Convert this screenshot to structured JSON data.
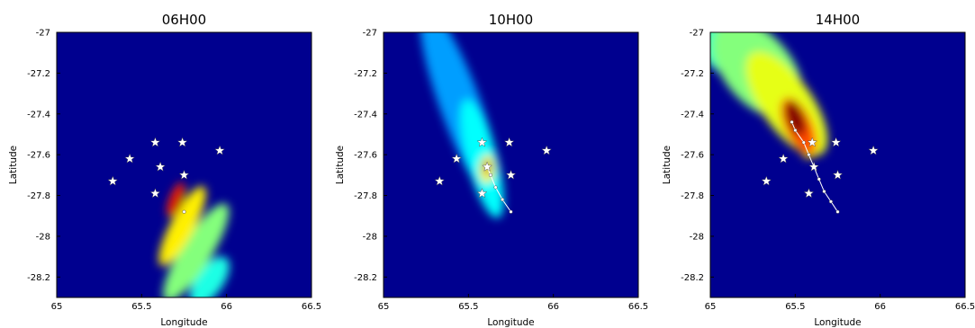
{
  "chart_data": [
    {
      "type": "heatmap",
      "title": "06H00",
      "xlabel": "Longitude",
      "ylabel": "Latitude",
      "xlim": [
        65,
        66.5
      ],
      "ylim": [
        -28.3,
        -27
      ],
      "xticks": [
        65,
        65.5,
        66,
        66.5
      ],
      "xtick_labels": [
        "65",
        "65.5",
        "66",
        "66.5"
      ],
      "yticks": [
        -27,
        -27.2,
        -27.4,
        -27.6,
        -27.8,
        -28,
        -28.2
      ],
      "ytick_labels": [
        "-27",
        "-27.2",
        "-27.4",
        "-27.6",
        "-27.8",
        "-28",
        "-28.2"
      ],
      "colormap": "jet",
      "background_color": "#00008f",
      "stars": [
        [
          65.33,
          -27.73
        ],
        [
          65.43,
          -27.62
        ],
        [
          65.58,
          -27.54
        ],
        [
          65.74,
          -27.54
        ],
        [
          65.96,
          -27.58
        ],
        [
          65.61,
          -27.66
        ],
        [
          65.75,
          -27.7
        ],
        [
          65.58,
          -27.79
        ]
      ],
      "track": [
        [
          65.75,
          -27.88
        ]
      ],
      "plume": [
        {
          "x": 65.72,
          "y": -27.84,
          "rx": 0.02,
          "ry": 0.06,
          "angle": 22,
          "intensity": 1.0
        },
        {
          "x": 65.7,
          "y": -27.82,
          "rx": 0.035,
          "ry": 0.09,
          "angle": 22,
          "intensity": 0.8
        },
        {
          "x": 65.74,
          "y": -27.95,
          "rx": 0.07,
          "ry": 0.22,
          "angle": 28,
          "intensity": 0.55
        },
        {
          "x": 65.82,
          "y": -28.08,
          "rx": 0.09,
          "ry": 0.28,
          "angle": 32,
          "intensity": 0.38
        },
        {
          "x": 65.9,
          "y": -28.22,
          "rx": 0.08,
          "ry": 0.14,
          "angle": 35,
          "intensity": 0.25
        }
      ]
    },
    {
      "type": "heatmap",
      "title": "10H00",
      "xlabel": "Longitude",
      "ylabel": "Latitude",
      "xlim": [
        65,
        66.5
      ],
      "ylim": [
        -28.3,
        -27
      ],
      "xticks": [
        65,
        65.5,
        66,
        66.5
      ],
      "xtick_labels": [
        "65",
        "65.5",
        "66",
        "66.5"
      ],
      "yticks": [
        -27,
        -27.2,
        -27.4,
        -27.6,
        -27.8,
        -28,
        -28.2
      ],
      "ytick_labels": [
        "-27",
        "-27.2",
        "-27.4",
        "-27.6",
        "-27.8",
        "-28",
        "-28.2"
      ],
      "colormap": "jet",
      "background_color": "#00008f",
      "stars": [
        [
          65.33,
          -27.73
        ],
        [
          65.43,
          -27.62
        ],
        [
          65.58,
          -27.54
        ],
        [
          65.74,
          -27.54
        ],
        [
          65.96,
          -27.58
        ],
        [
          65.75,
          -27.7
        ],
        [
          65.58,
          -27.79
        ],
        [
          65.61,
          -27.66
        ]
      ],
      "track": [
        [
          65.61,
          -27.66
        ],
        [
          65.63,
          -27.7
        ],
        [
          65.66,
          -27.76
        ],
        [
          65.7,
          -27.82
        ],
        [
          65.75,
          -27.88
        ]
      ],
      "plume": [
        {
          "x": 65.61,
          "y": -27.66,
          "rx": 0.018,
          "ry": 0.03,
          "angle": 0,
          "intensity": 1.0
        },
        {
          "x": 65.61,
          "y": -27.67,
          "rx": 0.045,
          "ry": 0.07,
          "angle": 5,
          "intensity": 0.55
        },
        {
          "x": 65.58,
          "y": -27.62,
          "rx": 0.09,
          "ry": 0.3,
          "angle": -15,
          "intensity": 0.22
        },
        {
          "x": 65.45,
          "y": -27.35,
          "rx": 0.12,
          "ry": 0.5,
          "angle": -20,
          "intensity": 0.1
        }
      ]
    },
    {
      "type": "heatmap",
      "title": "14H00",
      "xlabel": "Longitude",
      "ylabel": "Latitude",
      "xlim": [
        65,
        66.5
      ],
      "ylim": [
        -28.3,
        -27
      ],
      "xticks": [
        65,
        65.5,
        66,
        66.5
      ],
      "xtick_labels": [
        "65",
        "65.5",
        "66",
        "66.5"
      ],
      "yticks": [
        -27,
        -27.2,
        -27.4,
        -27.6,
        -27.8,
        -28,
        -28.2
      ],
      "ytick_labels": [
        "-27",
        "-27.2",
        "-27.4",
        "-27.6",
        "-27.8",
        "-28",
        "-28.2"
      ],
      "colormap": "jet",
      "background_color": "#00008f",
      "stars": [
        [
          65.33,
          -27.73
        ],
        [
          65.43,
          -27.62
        ],
        [
          65.6,
          -27.54
        ],
        [
          65.74,
          -27.54
        ],
        [
          65.96,
          -27.58
        ],
        [
          65.75,
          -27.7
        ],
        [
          65.58,
          -27.79
        ],
        [
          65.61,
          -27.66
        ]
      ],
      "track": [
        [
          65.48,
          -27.44
        ],
        [
          65.5,
          -27.48
        ],
        [
          65.55,
          -27.54
        ],
        [
          65.58,
          -27.6
        ],
        [
          65.61,
          -27.66
        ],
        [
          65.64,
          -27.72
        ],
        [
          65.67,
          -27.78
        ],
        [
          65.71,
          -27.83
        ],
        [
          65.75,
          -27.88
        ]
      ],
      "plume": [
        {
          "x": 65.5,
          "y": -27.42,
          "rx": 0.05,
          "ry": 0.09,
          "angle": -20,
          "intensity": 1.0
        },
        {
          "x": 65.52,
          "y": -27.46,
          "rx": 0.08,
          "ry": 0.15,
          "angle": -25,
          "intensity": 0.75
        },
        {
          "x": 65.45,
          "y": -27.35,
          "rx": 0.15,
          "ry": 0.3,
          "angle": -35,
          "intensity": 0.5
        },
        {
          "x": 65.28,
          "y": -27.18,
          "rx": 0.2,
          "ry": 0.28,
          "angle": -40,
          "intensity": 0.38
        },
        {
          "x": 65.12,
          "y": -27.05,
          "rx": 0.18,
          "ry": 0.18,
          "angle": -40,
          "intensity": 0.3
        },
        {
          "x": 65.58,
          "y": -27.56,
          "rx": 0.05,
          "ry": 0.06,
          "angle": 0,
          "intensity": 0.55
        }
      ]
    }
  ]
}
